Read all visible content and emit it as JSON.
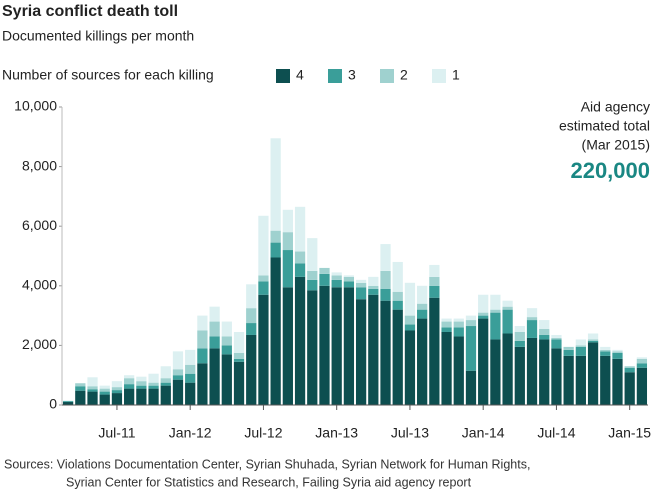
{
  "chart_data": {
    "type": "stacked_bar",
    "title": "Syria conflict death toll",
    "subtitle": "Documented killings per month",
    "legend_title": "Number of sources for each killing",
    "annotation": [
      "Aid agency",
      "estimated total",
      "(Mar 2015)"
    ],
    "annotation_value": "220,000",
    "sources": [
      "Sources: Violations Documentation Center, Syrian Shuhada, Syrian Network for Human Rights,",
      "Syrian Center for Statistics and Research, Failing Syria aid agency report"
    ],
    "categories": [
      null,
      null,
      null,
      null,
      "Jul-11",
      null,
      null,
      null,
      null,
      null,
      "Jan-12",
      null,
      null,
      null,
      null,
      null,
      "Jul-12",
      null,
      null,
      null,
      null,
      null,
      "Jan-13",
      null,
      null,
      null,
      null,
      null,
      "Jul-13",
      null,
      null,
      null,
      null,
      null,
      "Jan-14",
      null,
      null,
      null,
      null,
      null,
      "Jul-14",
      null,
      null,
      null,
      null,
      null,
      "Jan-15",
      null
    ],
    "series": [
      {
        "name": "4",
        "color": "#0d4f50",
        "values": [
          100,
          480,
          450,
          350,
          400,
          550,
          550,
          550,
          650,
          850,
          750,
          1400,
          1900,
          1700,
          1450,
          2350,
          3700,
          4950,
          3950,
          4300,
          3850,
          4000,
          3950,
          3950,
          3550,
          3700,
          3500,
          3200,
          2500,
          2900,
          3600,
          2450,
          2300,
          1150,
          2900,
          2200,
          2400,
          1950,
          2250,
          2200,
          1900,
          1650,
          1650,
          2100,
          1650,
          1550,
          1100,
          1250
        ]
      },
      {
        "name": "3",
        "color": "#3a9e99",
        "values": [
          30,
          150,
          80,
          100,
          100,
          150,
          100,
          100,
          100,
          150,
          300,
          500,
          400,
          300,
          100,
          400,
          450,
          500,
          1250,
          450,
          350,
          400,
          250,
          200,
          400,
          200,
          400,
          300,
          200,
          300,
          400,
          150,
          300,
          1500,
          100,
          900,
          800,
          200,
          600,
          150,
          300,
          200,
          300,
          50,
          150,
          200,
          150,
          150
        ]
      },
      {
        "name": "2",
        "color": "#9fd1cf",
        "values": [
          10,
          100,
          100,
          100,
          100,
          200,
          150,
          100,
          150,
          200,
          300,
          600,
          500,
          300,
          200,
          500,
          200,
          400,
          600,
          400,
          300,
          200,
          150,
          150,
          150,
          100,
          600,
          300,
          300,
          200,
          300,
          200,
          200,
          200,
          100,
          100,
          100,
          300,
          100,
          200,
          50,
          100,
          50,
          50,
          50,
          50,
          50,
          150
        ]
      },
      {
        "name": "1",
        "color": "#dcf0f1",
        "values": [
          10,
          0,
          300,
          100,
          200,
          100,
          150,
          300,
          400,
          600,
          500,
          500,
          500,
          500,
          700,
          800,
          2000,
          3100,
          750,
          1500,
          1100,
          0,
          100,
          50,
          100,
          300,
          900,
          1000,
          1100,
          600,
          400,
          100,
          100,
          150,
          600,
          500,
          200,
          200,
          300,
          300,
          100,
          0,
          200,
          200,
          100,
          50,
          0,
          50
        ]
      }
    ],
    "ylim": [
      0,
      10000
    ],
    "yticks": [
      0,
      {
        "value": 2000,
        "label": "2,000"
      },
      {
        "value": 4000,
        "label": "4,000"
      },
      {
        "value": 6000,
        "label": "6,000"
      },
      {
        "value": 8000,
        "label": "8,000"
      },
      {
        "value": 10000,
        "label": "10,000"
      }
    ],
    "grid": false
  }
}
